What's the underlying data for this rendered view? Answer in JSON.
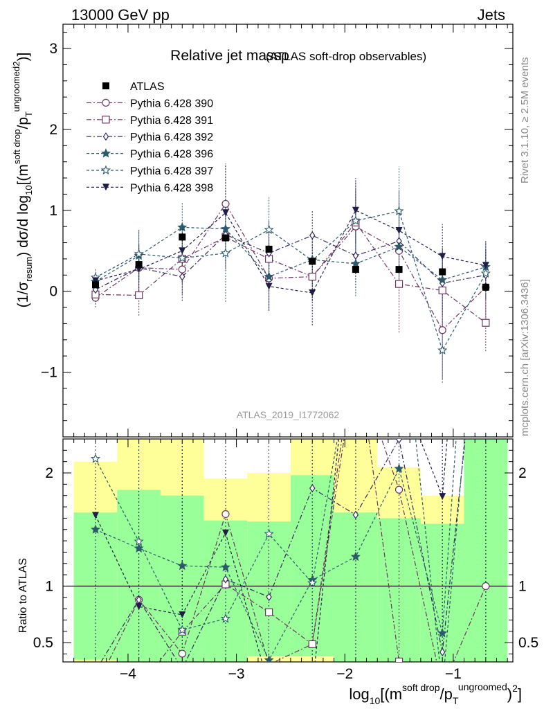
{
  "header": {
    "left": "13000 GeV pp",
    "right": "Jets"
  },
  "side_labels": {
    "rivet": "Rivet 3.1.10, ≥ 2.5M events",
    "mcplots": "mcplots.cern.ch [arXiv:1306.3436]"
  },
  "analysis_id": "ATLAS_2019_I1772062",
  "chart_data": {
    "type": "scatter",
    "title": "Relative jet massρ",
    "subtitle": "(ATLAS soft-drop observables)",
    "xlabel_parts": {
      "pre": "log",
      "sub": "10",
      "open": "[(m",
      "sup1": "soft drop",
      "mid": "/p",
      "sub2": "T",
      "sup2": "ungroomed",
      "close": ")",
      "sup3": "2",
      "end": "]"
    },
    "ylabel_parts": {
      "pre": "(1/σ",
      "sub1": "resum",
      "mid": ") dσ/d log",
      "sub2": "10",
      "open": "[(m",
      "sup1": "soft drop",
      "slash": "/p",
      "sub3": "T",
      "sup2": "ungroomed",
      "sup3": "2",
      "close": ")]"
    },
    "ratio_ylabel": "Ratio to ATLAS",
    "xlim": [
      -4.6,
      -0.45
    ],
    "ylim": [
      -1.8,
      3.3
    ],
    "ratio_ylim": [
      0.33,
      2.3
    ],
    "x_ticks": [
      -4,
      -3,
      -2,
      -1
    ],
    "x_tick_labels": [
      "−4",
      "−3",
      "−2",
      "−1"
    ],
    "y_ticks": [
      -1,
      0,
      1,
      2,
      3
    ],
    "y_tick_labels": [
      "−1",
      "0",
      "1",
      "2",
      "3"
    ],
    "ratio_y_ticks": [
      0.5,
      1,
      2
    ],
    "ratio_y_tick_labels": [
      "0.5",
      "1",
      "2"
    ],
    "x": [
      -4.3,
      -3.9,
      -3.5,
      -3.1,
      -2.7,
      -2.3,
      -1.9,
      -1.5,
      -1.1,
      -0.7
    ],
    "bin_edges": [
      -4.5,
      -4.1,
      -3.7,
      -3.3,
      -2.9,
      -2.5,
      -2.1,
      -1.7,
      -1.3,
      -0.9,
      -0.5
    ],
    "band_green": [
      [
        0.35,
        1.65
      ],
      [
        0.33,
        1.85
      ],
      [
        0.33,
        1.8
      ],
      [
        0.33,
        1.58
      ],
      [
        0.38,
        1.57
      ],
      [
        0.38,
        1.98
      ],
      [
        0.33,
        1.65
      ],
      [
        0.33,
        1.6
      ],
      [
        0.33,
        1.55
      ],
      [
        0.33,
        2.3
      ]
    ],
    "band_yellow": [
      [
        0.33,
        2.1
      ],
      [
        0.33,
        2.3
      ],
      [
        0.33,
        2.3
      ],
      [
        0.33,
        1.95
      ],
      [
        0.33,
        2.0
      ],
      [
        0.33,
        2.3
      ],
      [
        0.33,
        2.3
      ],
      [
        0.33,
        2.05
      ],
      [
        0.33,
        1.8
      ],
      [
        0.33,
        2.3
      ]
    ],
    "series": [
      {
        "name": "ATLAS",
        "color": "#000000",
        "marker": "square-filled",
        "dash": "none",
        "values": [
          0.08,
          0.33,
          0.67,
          0.66,
          0.52,
          0.37,
          0.27,
          0.27,
          0.24,
          0.05
        ],
        "errors": [
          0.05,
          0.05,
          0.05,
          0.05,
          0.05,
          0.05,
          0.05,
          0.05,
          0.05,
          0.05
        ]
      },
      {
        "name": "Pythia 6.428 390",
        "color": "#6b3560",
        "marker": "circle-open",
        "dash": "7,3,2,3",
        "values": [
          -0.08,
          0.29,
          0.27,
          1.08,
          0.16,
          0.18,
          0.8,
          0.5,
          -0.48,
          0.05
        ],
        "errors": [
          0.12,
          0.3,
          0.3,
          0.5,
          0.4,
          0.3,
          0.4,
          0.6,
          0.6,
          0.4
        ]
      },
      {
        "name": "Pythia 6.428 391",
        "color": "#6b3560",
        "marker": "square-open",
        "dash": "7,3,2,3",
        "values": [
          -0.04,
          -0.05,
          0.4,
          0.67,
          0.4,
          0.18,
          0.85,
          0.09,
          0.01,
          -0.39
        ],
        "errors": [
          0.12,
          0.25,
          0.3,
          0.4,
          0.4,
          0.3,
          0.4,
          0.6,
          0.5,
          0.35
        ]
      },
      {
        "name": "Pythia 6.428 392",
        "color": "#35285e",
        "marker": "diamond-open",
        "dash": "7,3,2,3",
        "values": [
          0.02,
          0.29,
          0.18,
          0.7,
          0.47,
          0.69,
          0.44,
          0.62,
          0.1,
          0.2
        ],
        "errors": [
          0.12,
          0.25,
          0.3,
          0.4,
          0.4,
          0.3,
          0.4,
          0.5,
          0.4,
          0.3
        ]
      },
      {
        "name": "Pythia 6.428 396",
        "color": "#2c5a6a",
        "marker": "star-filled",
        "dash": "4,3",
        "values": [
          0.12,
          0.44,
          0.79,
          0.77,
          0.18,
          0.39,
          0.34,
          0.55,
          0.14,
          0.3
        ],
        "errors": [
          0.12,
          0.3,
          0.3,
          0.4,
          0.4,
          0.3,
          0.4,
          0.5,
          0.4,
          0.3
        ]
      },
      {
        "name": "Pythia 6.428 397",
        "color": "#2c5a6a",
        "marker": "star-open",
        "dash": "4,3",
        "values": [
          0.17,
          0.46,
          0.41,
          0.47,
          0.76,
          0.38,
          0.87,
          0.99,
          -0.73,
          0.22
        ],
        "errors": [
          0.12,
          0.3,
          0.3,
          0.6,
          0.4,
          0.3,
          0.5,
          0.55,
          0.4,
          0.3
        ]
      },
      {
        "name": "Pythia 6.428 398",
        "color": "#1e1e46",
        "marker": "triangle-down-filled",
        "dash": "4,3",
        "values": [
          0.13,
          0.27,
          0.5,
          0.97,
          0.06,
          -0.02,
          1.0,
          0.75,
          0.43,
          0.32
        ],
        "errors": [
          0.12,
          0.3,
          0.3,
          0.6,
          0.3,
          0.4,
          0.4,
          0.5,
          0.4,
          0.3
        ]
      }
    ]
  }
}
